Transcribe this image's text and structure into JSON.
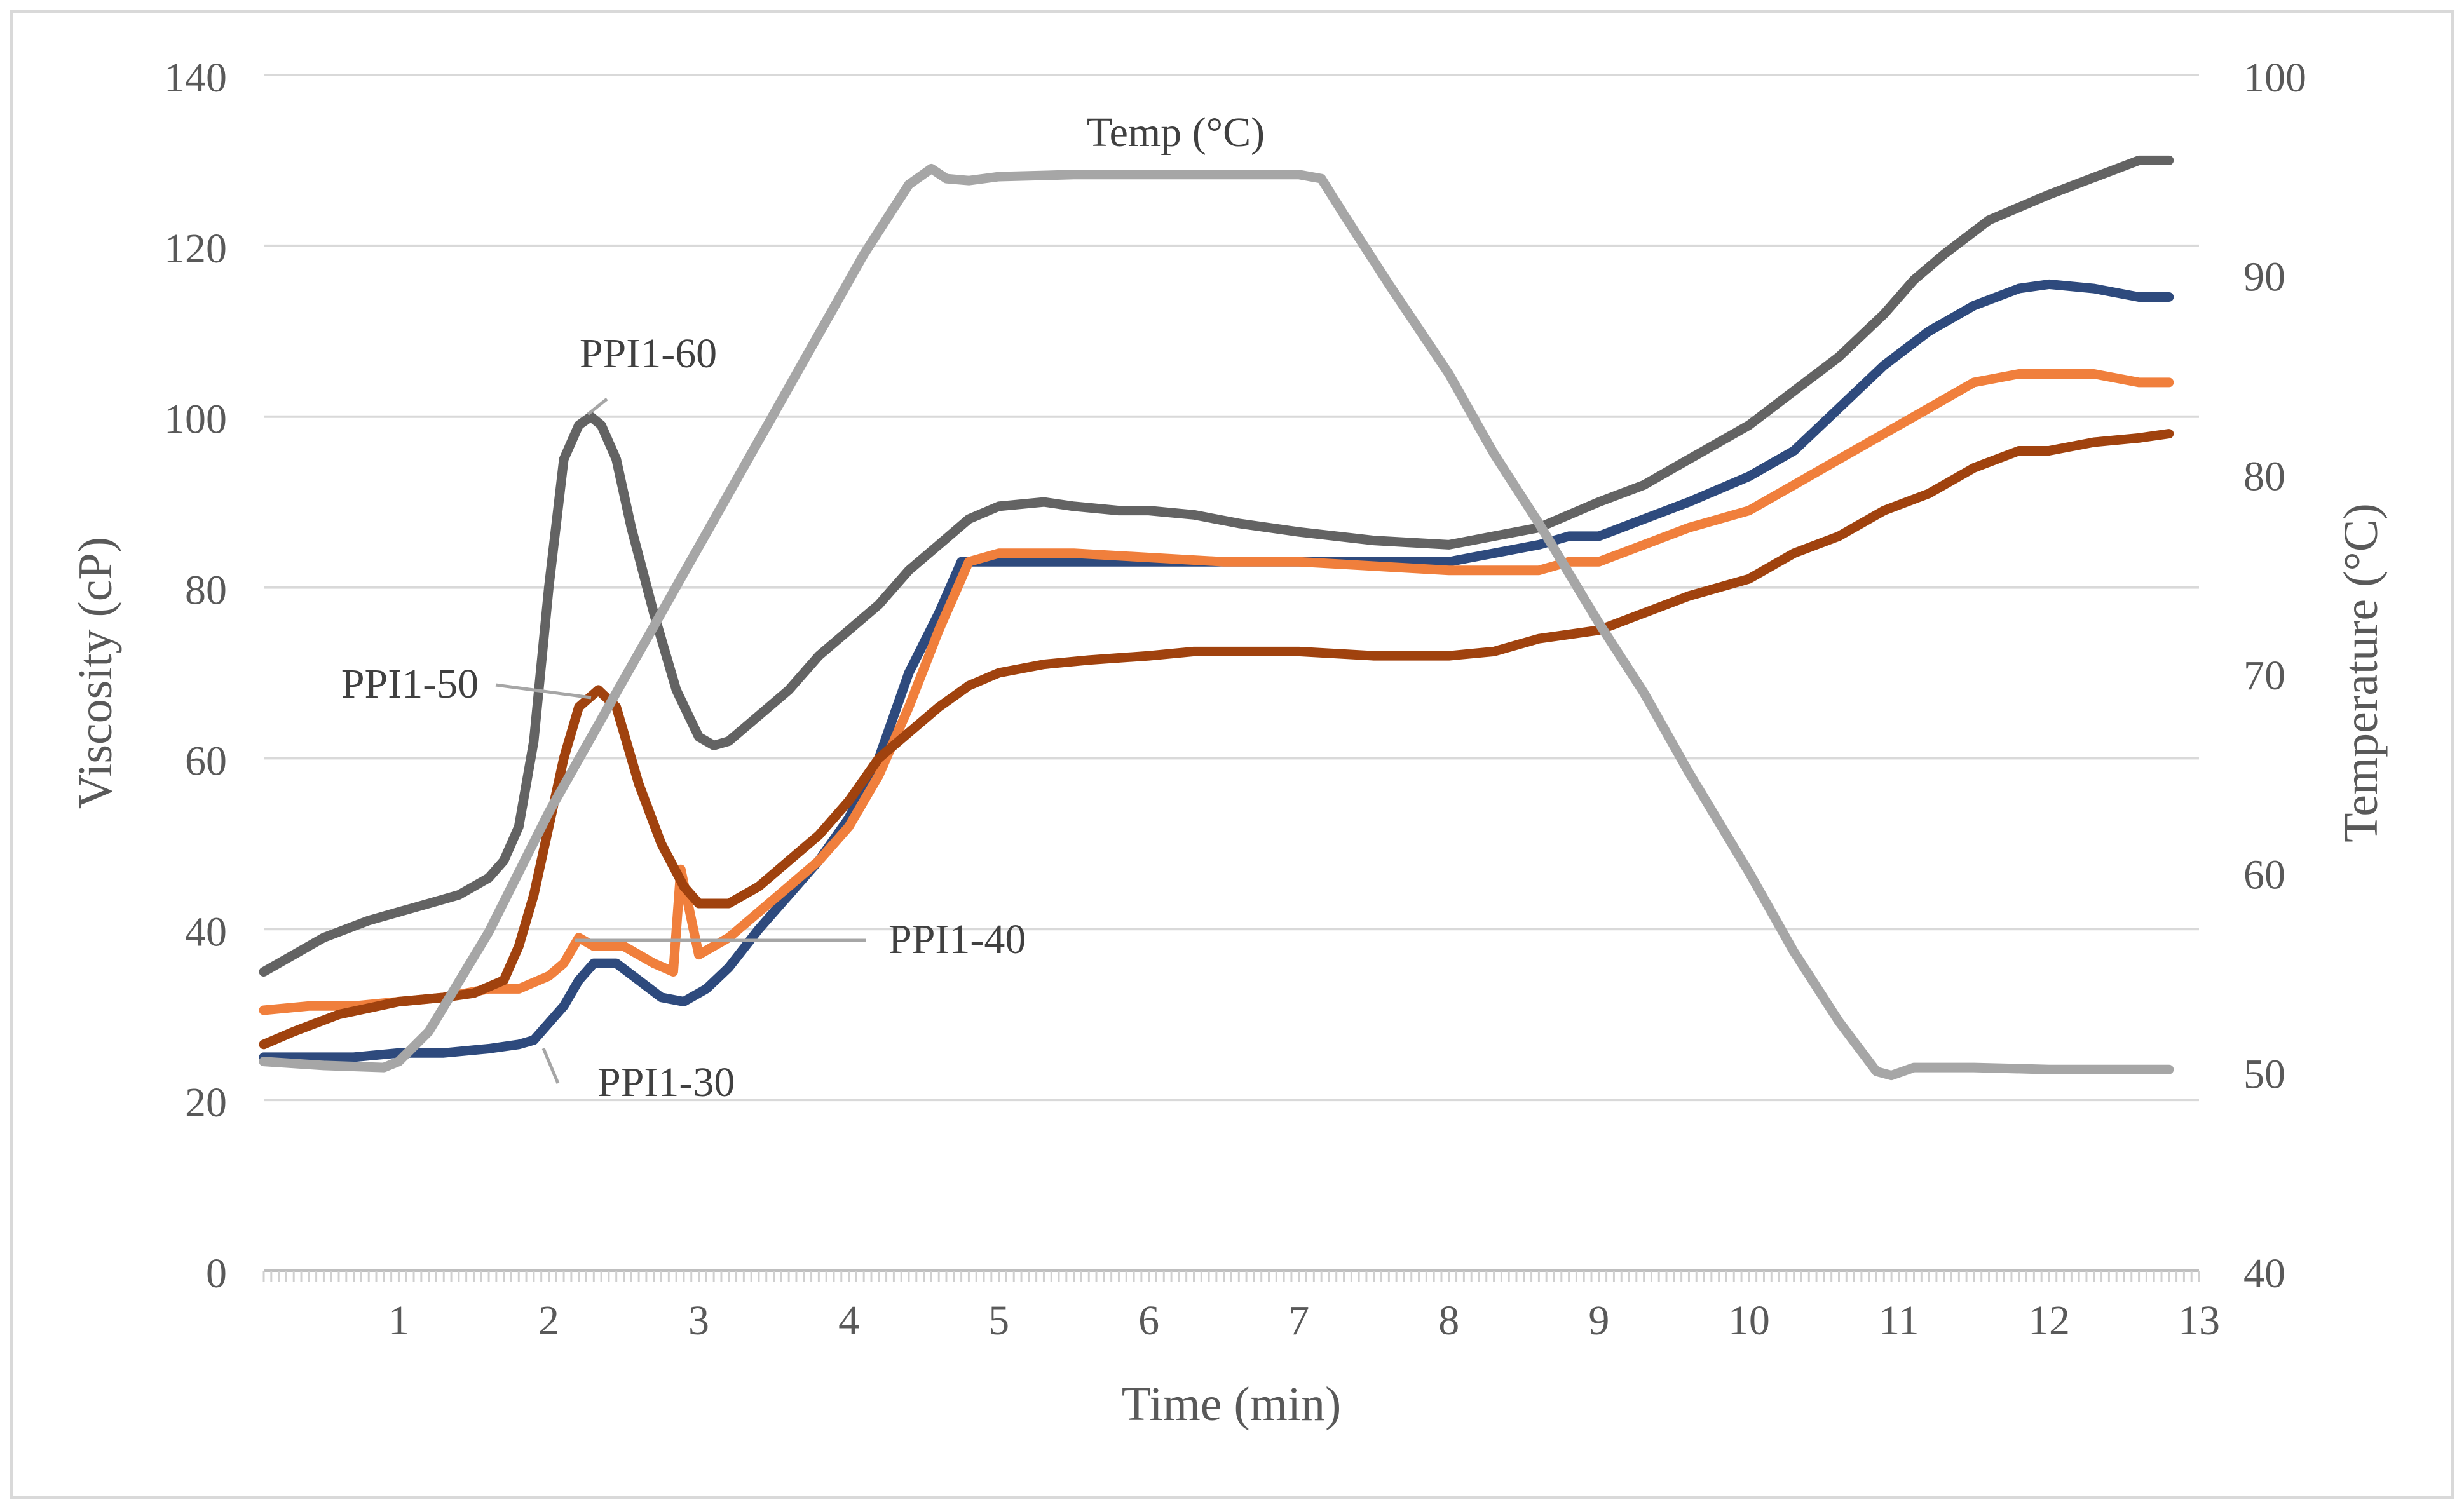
{
  "chart_data": {
    "type": "line",
    "xlabel": "Time (min)",
    "ylabel": "Viscosity (cP)",
    "y2label": "Temperature (°C)",
    "xlim": [
      0.1,
      13
    ],
    "ylim": [
      0,
      140
    ],
    "y2lim": [
      40,
      100
    ],
    "x_ticks": [
      1,
      2,
      3,
      4,
      5,
      6,
      7,
      8,
      9,
      10,
      11,
      12,
      13
    ],
    "y_ticks": [
      0,
      20,
      40,
      60,
      80,
      100,
      120,
      140
    ],
    "y2_ticks": [
      40,
      50,
      60,
      70,
      80,
      90,
      100
    ],
    "grid": true,
    "series": [
      {
        "name": "PPI1-60",
        "color": "#636363",
        "axis": "left",
        "points": [
          [
            0.1,
            35
          ],
          [
            0.3,
            37
          ],
          [
            0.5,
            39
          ],
          [
            0.8,
            41
          ],
          [
            1.0,
            42
          ],
          [
            1.2,
            43
          ],
          [
            1.4,
            44
          ],
          [
            1.6,
            46
          ],
          [
            1.7,
            48
          ],
          [
            1.8,
            52
          ],
          [
            1.9,
            62
          ],
          [
            2.0,
            80
          ],
          [
            2.1,
            95
          ],
          [
            2.2,
            99
          ],
          [
            2.28,
            100
          ],
          [
            2.35,
            99
          ],
          [
            2.45,
            95
          ],
          [
            2.55,
            87
          ],
          [
            2.7,
            77
          ],
          [
            2.85,
            68
          ],
          [
            3.0,
            62.5
          ],
          [
            3.1,
            61.5
          ],
          [
            3.2,
            62
          ],
          [
            3.4,
            65
          ],
          [
            3.6,
            68
          ],
          [
            3.8,
            72
          ],
          [
            4.0,
            75
          ],
          [
            4.2,
            78
          ],
          [
            4.4,
            82
          ],
          [
            4.6,
            85
          ],
          [
            4.8,
            88
          ],
          [
            5.0,
            89.5
          ],
          [
            5.3,
            90
          ],
          [
            5.5,
            89.5
          ],
          [
            5.8,
            89
          ],
          [
            6.0,
            89
          ],
          [
            6.3,
            88.5
          ],
          [
            6.6,
            87.5
          ],
          [
            7.0,
            86.5
          ],
          [
            7.5,
            85.5
          ],
          [
            8.0,
            85
          ],
          [
            8.3,
            86
          ],
          [
            8.6,
            87
          ],
          [
            9.0,
            90
          ],
          [
            9.3,
            92
          ],
          [
            9.6,
            95
          ],
          [
            10.0,
            99
          ],
          [
            10.3,
            103
          ],
          [
            10.6,
            107
          ],
          [
            10.9,
            112
          ],
          [
            11.1,
            116
          ],
          [
            11.3,
            119
          ],
          [
            11.6,
            123
          ],
          [
            12.0,
            126
          ],
          [
            12.3,
            128
          ],
          [
            12.6,
            130
          ],
          [
            12.8,
            130
          ]
        ]
      },
      {
        "name": "PPI1-30",
        "color": "#2e4a7d",
        "axis": "left",
        "points": [
          [
            0.1,
            25
          ],
          [
            0.4,
            25
          ],
          [
            0.7,
            25
          ],
          [
            1.0,
            25.5
          ],
          [
            1.3,
            25.5
          ],
          [
            1.6,
            26
          ],
          [
            1.8,
            26.5
          ],
          [
            1.9,
            27
          ],
          [
            2.0,
            29
          ],
          [
            2.1,
            31
          ],
          [
            2.2,
            34
          ],
          [
            2.3,
            36
          ],
          [
            2.45,
            36
          ],
          [
            2.6,
            34
          ],
          [
            2.75,
            32
          ],
          [
            2.9,
            31.5
          ],
          [
            3.05,
            33
          ],
          [
            3.2,
            35.5
          ],
          [
            3.4,
            40
          ],
          [
            3.6,
            44
          ],
          [
            3.8,
            48
          ],
          [
            4.0,
            53
          ],
          [
            4.2,
            60
          ],
          [
            4.4,
            70
          ],
          [
            4.6,
            77
          ],
          [
            4.75,
            83
          ],
          [
            5.0,
            83
          ],
          [
            5.5,
            83
          ],
          [
            6.0,
            83
          ],
          [
            6.5,
            83
          ],
          [
            7.0,
            83
          ],
          [
            7.5,
            83
          ],
          [
            8.0,
            83
          ],
          [
            8.3,
            84
          ],
          [
            8.6,
            85
          ],
          [
            8.8,
            86
          ],
          [
            9.0,
            86
          ],
          [
            9.3,
            88
          ],
          [
            9.6,
            90
          ],
          [
            10.0,
            93
          ],
          [
            10.3,
            96
          ],
          [
            10.6,
            101
          ],
          [
            10.9,
            106
          ],
          [
            11.2,
            110
          ],
          [
            11.5,
            113
          ],
          [
            11.8,
            115
          ],
          [
            12.0,
            115.5
          ],
          [
            12.3,
            115
          ],
          [
            12.6,
            114
          ],
          [
            12.8,
            114
          ]
        ]
      },
      {
        "name": "PPI1-40",
        "color": "#f07f3c",
        "axis": "left",
        "points": [
          [
            0.1,
            30.5
          ],
          [
            0.4,
            31
          ],
          [
            0.7,
            31
          ],
          [
            1.0,
            31.5
          ],
          [
            1.3,
            32
          ],
          [
            1.6,
            33
          ],
          [
            1.8,
            33
          ],
          [
            2.0,
            34.5
          ],
          [
            2.1,
            36
          ],
          [
            2.2,
            39
          ],
          [
            2.3,
            38
          ],
          [
            2.5,
            38
          ],
          [
            2.7,
            36
          ],
          [
            2.83,
            35
          ],
          [
            2.88,
            47
          ],
          [
            3.0,
            37
          ],
          [
            3.2,
            39
          ],
          [
            3.4,
            42
          ],
          [
            3.6,
            45
          ],
          [
            3.8,
            48
          ],
          [
            4.0,
            52
          ],
          [
            4.2,
            58
          ],
          [
            4.4,
            66
          ],
          [
            4.6,
            75
          ],
          [
            4.8,
            83
          ],
          [
            5.0,
            84
          ],
          [
            5.5,
            84
          ],
          [
            6.0,
            83.5
          ],
          [
            6.5,
            83
          ],
          [
            7.0,
            83
          ],
          [
            7.5,
            82.5
          ],
          [
            8.0,
            82
          ],
          [
            8.3,
            82
          ],
          [
            8.6,
            82
          ],
          [
            8.8,
            83
          ],
          [
            9.0,
            83
          ],
          [
            9.3,
            85
          ],
          [
            9.6,
            87
          ],
          [
            10.0,
            89
          ],
          [
            10.3,
            92
          ],
          [
            10.6,
            95
          ],
          [
            10.9,
            98
          ],
          [
            11.2,
            101
          ],
          [
            11.5,
            104
          ],
          [
            11.8,
            105
          ],
          [
            12.0,
            105
          ],
          [
            12.3,
            105
          ],
          [
            12.6,
            104
          ],
          [
            12.8,
            104
          ]
        ]
      },
      {
        "name": "PPI1-50",
        "color": "#a0420e",
        "axis": "left",
        "points": [
          [
            0.1,
            26.5
          ],
          [
            0.3,
            28
          ],
          [
            0.6,
            30
          ],
          [
            1.0,
            31.5
          ],
          [
            1.3,
            32
          ],
          [
            1.5,
            32.5
          ],
          [
            1.7,
            34
          ],
          [
            1.8,
            38
          ],
          [
            1.9,
            44
          ],
          [
            2.0,
            52
          ],
          [
            2.1,
            60
          ],
          [
            2.2,
            66
          ],
          [
            2.33,
            68
          ],
          [
            2.45,
            66
          ],
          [
            2.6,
            57
          ],
          [
            2.75,
            50
          ],
          [
            2.9,
            45
          ],
          [
            3.0,
            43
          ],
          [
            3.2,
            43
          ],
          [
            3.4,
            45
          ],
          [
            3.6,
            48
          ],
          [
            3.8,
            51
          ],
          [
            4.0,
            55
          ],
          [
            4.2,
            60
          ],
          [
            4.4,
            63
          ],
          [
            4.6,
            66
          ],
          [
            4.8,
            68.5
          ],
          [
            5.0,
            70
          ],
          [
            5.3,
            71
          ],
          [
            5.6,
            71.5
          ],
          [
            6.0,
            72
          ],
          [
            6.3,
            72.5
          ],
          [
            6.6,
            72.5
          ],
          [
            7.0,
            72.5
          ],
          [
            7.5,
            72
          ],
          [
            8.0,
            72
          ],
          [
            8.3,
            72.5
          ],
          [
            8.6,
            74
          ],
          [
            9.0,
            75
          ],
          [
            9.3,
            77
          ],
          [
            9.6,
            79
          ],
          [
            10.0,
            81
          ],
          [
            10.3,
            84
          ],
          [
            10.6,
            86
          ],
          [
            10.9,
            89
          ],
          [
            11.2,
            91
          ],
          [
            11.5,
            94
          ],
          [
            11.8,
            96
          ],
          [
            12.0,
            96
          ],
          [
            12.3,
            97
          ],
          [
            12.6,
            97.5
          ],
          [
            12.8,
            98
          ]
        ]
      },
      {
        "name": "Temp (°C)",
        "color": "#a6a6a6",
        "axis": "right",
        "points": [
          [
            0.1,
            50.5
          ],
          [
            0.5,
            50.3
          ],
          [
            0.9,
            50.2
          ],
          [
            1.0,
            50.5
          ],
          [
            1.2,
            52
          ],
          [
            1.4,
            54.5
          ],
          [
            1.6,
            57
          ],
          [
            1.8,
            60
          ],
          [
            2.0,
            63
          ],
          [
            2.3,
            67
          ],
          [
            2.6,
            71
          ],
          [
            2.9,
            75
          ],
          [
            3.2,
            79
          ],
          [
            3.5,
            83
          ],
          [
            3.8,
            87
          ],
          [
            4.1,
            91
          ],
          [
            4.4,
            94.5
          ],
          [
            4.55,
            95.3
          ],
          [
            4.65,
            94.8
          ],
          [
            4.8,
            94.7
          ],
          [
            5.0,
            94.9
          ],
          [
            5.5,
            95
          ],
          [
            6.0,
            95
          ],
          [
            6.5,
            95
          ],
          [
            7.0,
            95
          ],
          [
            7.15,
            94.8
          ],
          [
            7.3,
            93
          ],
          [
            7.6,
            89.5
          ],
          [
            8.0,
            85
          ],
          [
            8.3,
            81
          ],
          [
            8.6,
            77.5
          ],
          [
            9.0,
            72.5
          ],
          [
            9.3,
            69
          ],
          [
            9.6,
            65
          ],
          [
            10.0,
            60
          ],
          [
            10.3,
            56
          ],
          [
            10.6,
            52.5
          ],
          [
            10.85,
            50
          ],
          [
            10.95,
            49.8
          ],
          [
            11.1,
            50.2
          ],
          [
            11.5,
            50.2
          ],
          [
            12.0,
            50.1
          ],
          [
            12.5,
            50.1
          ],
          [
            12.8,
            50.1
          ]
        ]
      }
    ],
    "annotations": [
      {
        "text": "PPI1-60",
        "series": "PPI1-60",
        "x": 2.28,
        "y": 100
      },
      {
        "text": "PPI1-50",
        "series": "PPI1-50",
        "x": 2.3,
        "y": 68
      },
      {
        "text": "PPI1-40",
        "series": "PPI1-40",
        "x": 2.45,
        "y": 38
      },
      {
        "text": "PPI1-30",
        "series": "PPI1-30",
        "x": 1.9,
        "y": 27
      },
      {
        "text": "Temp (°C)",
        "series": "Temp (°C)",
        "x": 5.5,
        "y": 95
      }
    ]
  }
}
